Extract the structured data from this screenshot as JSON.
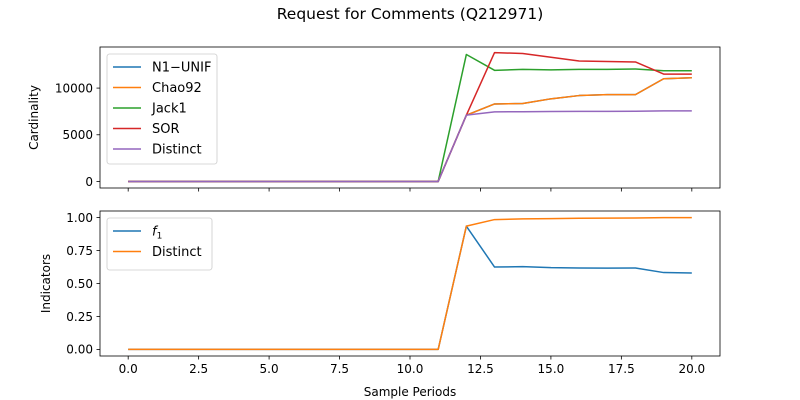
{
  "figure": {
    "title": "Request for Comments (Q212971)",
    "xlabel": "Sample Periods"
  },
  "chart_data": [
    {
      "type": "line",
      "ylabel": "Cardinality",
      "xlim": [
        -1,
        21
      ],
      "ylim": [
        -700,
        14400
      ],
      "xticks": [
        0.0,
        2.5,
        5.0,
        7.5,
        10.0,
        12.5,
        15.0,
        17.5,
        20.0
      ],
      "yticks": [
        0,
        5000,
        10000
      ],
      "ytick_labels": [
        "0",
        "5000",
        "10000"
      ],
      "legend_position": "upper-left",
      "x": [
        0,
        1,
        2,
        3,
        4,
        5,
        6,
        7,
        8,
        9,
        10,
        11,
        12,
        13,
        14,
        15,
        16,
        17,
        18,
        19,
        20
      ],
      "series": [
        {
          "name": "N1−UNIF",
          "color": "#1f77b4",
          "values": [
            0,
            0,
            0,
            0,
            0,
            0,
            0,
            0,
            0,
            0,
            0,
            0,
            7100,
            8300,
            8350,
            8850,
            9200,
            9300,
            9300,
            11000,
            11100
          ]
        },
        {
          "name": "Chao92",
          "color": "#ff7f0e",
          "values": [
            0,
            0,
            0,
            0,
            0,
            0,
            0,
            0,
            0,
            0,
            0,
            0,
            7100,
            8300,
            8350,
            8850,
            9200,
            9300,
            9300,
            11000,
            11100
          ]
        },
        {
          "name": "Jack1",
          "color": "#2ca02c",
          "values": [
            0,
            0,
            0,
            0,
            0,
            0,
            0,
            0,
            0,
            0,
            0,
            0,
            13600,
            11900,
            12000,
            11950,
            12000,
            12000,
            12050,
            11850,
            11850
          ]
        },
        {
          "name": "SOR",
          "color": "#d62728",
          "values": [
            0,
            0,
            0,
            0,
            0,
            0,
            0,
            0,
            0,
            0,
            0,
            0,
            7100,
            13800,
            13700,
            13300,
            12900,
            12850,
            12800,
            11500,
            11500
          ]
        },
        {
          "name": "Distinct",
          "color": "#9467bd",
          "values": [
            0,
            0,
            0,
            0,
            0,
            0,
            0,
            0,
            0,
            0,
            0,
            0,
            7100,
            7450,
            7470,
            7490,
            7500,
            7510,
            7520,
            7560,
            7560
          ]
        }
      ]
    },
    {
      "type": "line",
      "ylabel": "Indicators",
      "xlim": [
        -1,
        21
      ],
      "ylim": [
        -0.05,
        1.05
      ],
      "xticks": [
        0.0,
        2.5,
        5.0,
        7.5,
        10.0,
        12.5,
        15.0,
        17.5,
        20.0
      ],
      "yticks": [
        0.0,
        0.25,
        0.5,
        0.75,
        1.0
      ],
      "ytick_labels": [
        "0.00",
        "0.25",
        "0.50",
        "0.75",
        "1.00"
      ],
      "legend_position": "upper-left",
      "x": [
        0,
        1,
        2,
        3,
        4,
        5,
        6,
        7,
        8,
        9,
        10,
        11,
        12,
        13,
        14,
        15,
        16,
        17,
        18,
        19,
        20
      ],
      "series": [
        {
          "name": "f1",
          "color": "#1f77b4",
          "values": [
            0,
            0,
            0,
            0,
            0,
            0,
            0,
            0,
            0,
            0,
            0,
            0,
            0.935,
            0.625,
            0.628,
            0.62,
            0.618,
            0.617,
            0.618,
            0.583,
            0.58
          ]
        },
        {
          "name": "Distinct",
          "color": "#ff7f0e",
          "values": [
            0,
            0,
            0,
            0,
            0,
            0,
            0,
            0,
            0,
            0,
            0,
            0,
            0.935,
            0.985,
            0.99,
            0.992,
            0.995,
            0.996,
            0.997,
            1.0,
            1.0
          ]
        }
      ]
    }
  ]
}
